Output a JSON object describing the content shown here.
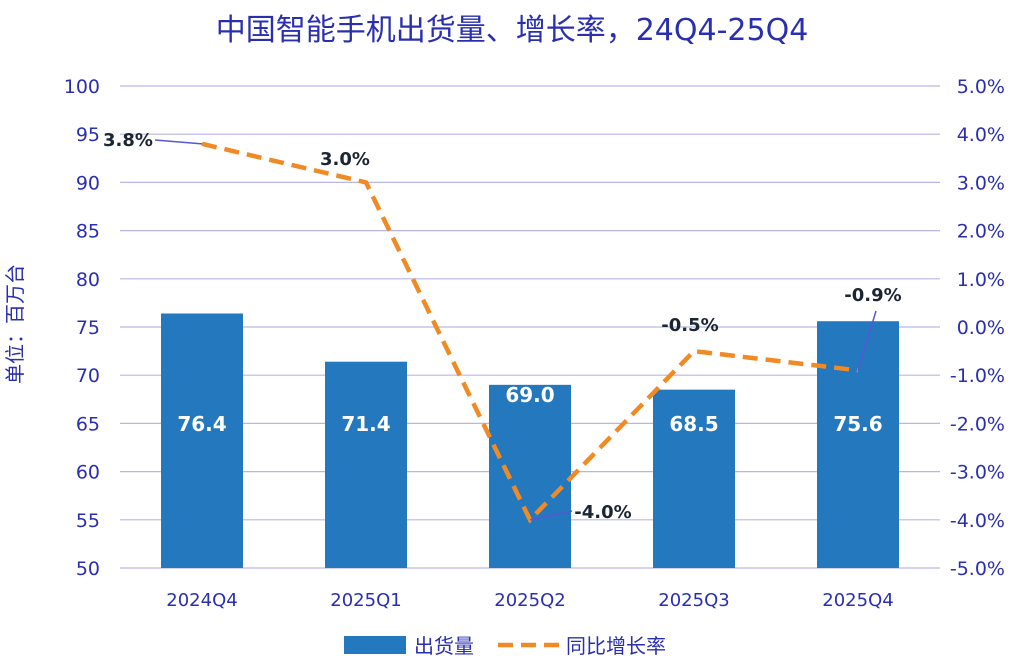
{
  "chart_data": {
    "type": "bar+line",
    "title": "中国智能手机出货量、增长率，24Q4-25Q4",
    "ylabel_left": "单位：百万台",
    "categories": [
      "2024Q4",
      "2025Q1",
      "2025Q2",
      "2025Q3",
      "2025Q4"
    ],
    "ylim_left": [
      50,
      100
    ],
    "yticks_left": [
      "50",
      "55",
      "60",
      "65",
      "70",
      "75",
      "80",
      "85",
      "90",
      "95",
      "100"
    ],
    "ylim_right": [
      -5.0,
      5.0
    ],
    "yticks_right": [
      "-5.0%",
      "-4.0%",
      "-3.0%",
      "-2.0%",
      "-1.0%",
      "0.0%",
      "1.0%",
      "2.0%",
      "3.0%",
      "4.0%",
      "5.0%"
    ],
    "grid": true,
    "series": [
      {
        "name": "出货量",
        "type": "bar",
        "axis": "left",
        "values": [
          76.4,
          71.4,
          69.0,
          68.5,
          75.6
        ],
        "labels": [
          "76.4",
          "71.4",
          "69.0",
          "68.5",
          "75.6"
        ],
        "color": "#2478be"
      },
      {
        "name": "同比增长率",
        "type": "line",
        "axis": "right",
        "style": "dashed",
        "values": [
          3.8,
          3.0,
          -4.0,
          -0.5,
          -0.9
        ],
        "labels": [
          "3.8%",
          "3.0%",
          "-4.0%",
          "-0.5%",
          "-0.9%"
        ],
        "color": "#f08a24"
      }
    ],
    "legend": {
      "placement": "bottom-center",
      "items": [
        "出货量",
        "同比增长率"
      ]
    },
    "colors": {
      "text": "#2a2fb0",
      "grid": "#b9b6e6",
      "bar": "#2478be",
      "line": "#f08a24",
      "leader": "#5a55d8",
      "data_label": "#1b2533"
    }
  }
}
